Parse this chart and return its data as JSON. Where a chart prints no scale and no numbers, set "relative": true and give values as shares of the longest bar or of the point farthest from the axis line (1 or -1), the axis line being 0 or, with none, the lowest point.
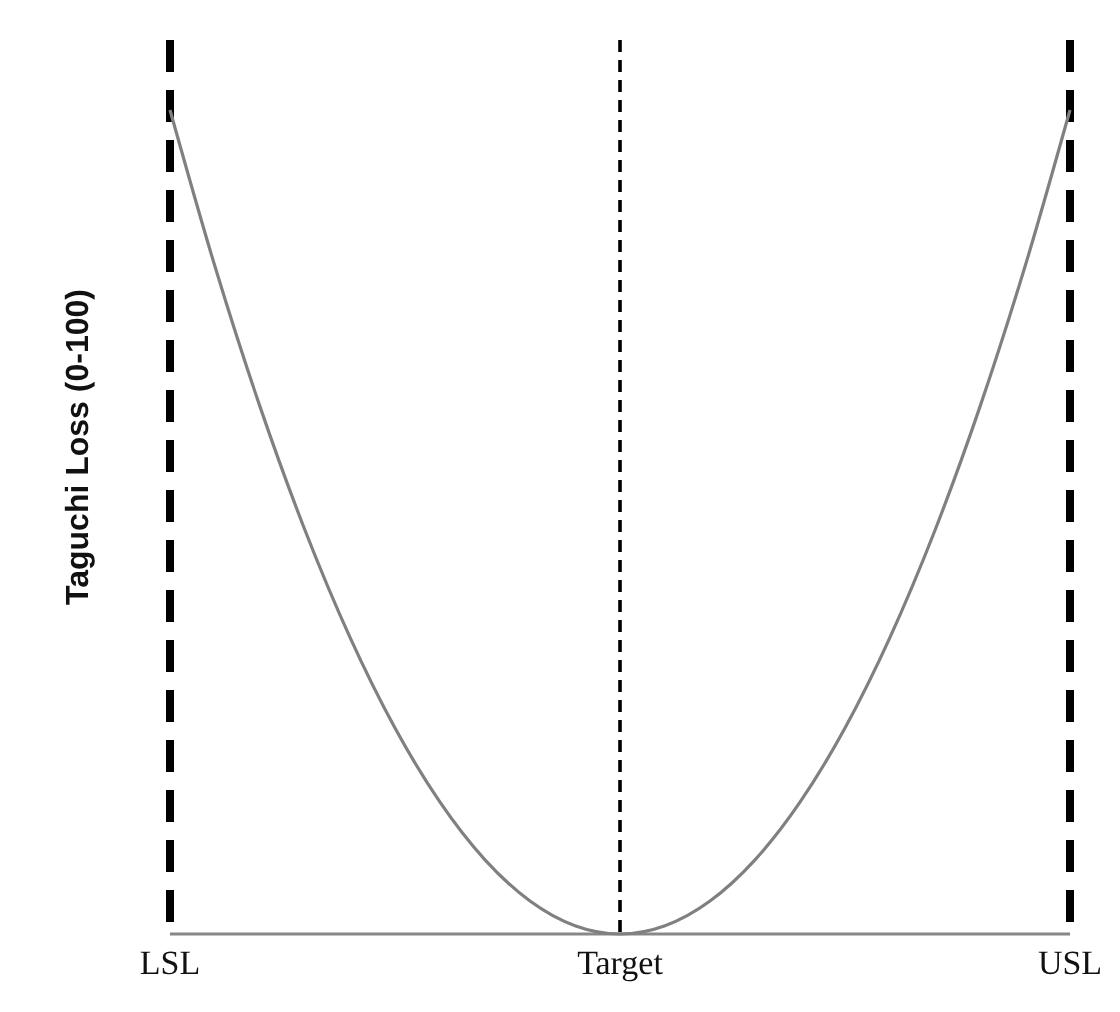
{
  "chart_data": {
    "type": "line",
    "ylabel": "Taguchi Loss (0-100)",
    "relative": true,
    "categories": [
      "LSL",
      null,
      null,
      null,
      null,
      null,
      null,
      null,
      null,
      null,
      "Target",
      null,
      null,
      null,
      null,
      null,
      null,
      null,
      null,
      null,
      "USL"
    ],
    "series": [
      {
        "color": "#808080",
        "values": [
          1,
          0.81,
          0.64,
          0.49,
          0.36,
          0.25,
          0.16,
          0.09,
          0.04,
          0.01,
          0,
          0.01,
          0.04,
          0.09,
          0.16,
          0.25,
          0.36,
          0.49,
          0.64,
          0.81,
          1
        ]
      }
    ],
    "ref_lines": [
      {
        "axis": "x",
        "value": "LSL",
        "line_style": "dashed",
        "color": "#000000"
      },
      {
        "axis": "x",
        "value": "Target",
        "line_style": "dashed",
        "color": "#000000"
      },
      {
        "axis": "x",
        "value": "USL",
        "line_style": "dashed",
        "color": "#000000"
      }
    ],
    "line_style": "solid"
  }
}
